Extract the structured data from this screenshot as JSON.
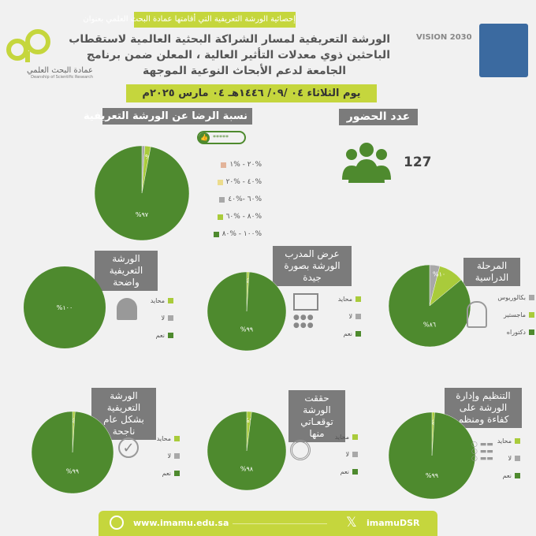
{
  "header": {
    "subtitle": "إحصائية الورشة التعريفية  التي أقامتها عمادة البحث العلمي بعنوان",
    "title_lines": [
      "الورشة التعريفية لمسار الشراكة البحثية العالمية لاستقطاب",
      "الباحثين ذوي معدلات التأثير العالية ، المعلن ضمن برنامج",
      "الجامعة لدعم الأبحاث النوعية الموجهة"
    ],
    "date": "يوم الثلاثاء ٠٤ /٠٩/ ١٤٤٦هـ   ٠٤ مارس ٢٠٢٥م",
    "deanship_logo_ar": "عمادة البحث العلمي",
    "deanship_logo_en": "Deanship of Scientific Research",
    "vision_logo": "VISION 2030"
  },
  "attendance": {
    "title": "عدد الحضور",
    "count": "127",
    "icon": "people-group-icon"
  },
  "colors": {
    "dark": "#4e8a2e",
    "light": "#a9cb3b",
    "gray": "#a8a8a8",
    "peach": "#e3b49a",
    "yellow": "#ecdc8c",
    "accent": "#c5d63d",
    "title_box": "#7b7b7b"
  },
  "chart_data": [
    {
      "type": "pie",
      "title": "نسبة الرضا عن الورشة التعريفية",
      "badge": "*****",
      "legend": [
        "%٢٠ - %١",
        "%٤٠ - %٢٠",
        "%٦٠ -%٤٠",
        "%٨٠ - %٦٠",
        "%١٠٠ - %٨٠"
      ],
      "slices": [
        {
          "label": "%٢٠ - %١",
          "value": 0
        },
        {
          "label": "%٤٠ - %٢٠",
          "value": 0
        },
        {
          "label": "%٦٠ -%٤٠",
          "value": 1,
          "data_label": "%١"
        },
        {
          "label": "%٨٠ - %٦٠",
          "value": 2,
          "data_label": "%٢"
        },
        {
          "label": "%١٠٠ - %٨٠",
          "value": 97,
          "data_label": "%٩٧"
        }
      ]
    },
    {
      "type": "pie",
      "title": "المرحلة  الدراسية",
      "icon": "graduate-icon",
      "slices": [
        {
          "label": "بكالوريوس",
          "value": 4,
          "data_label": "%٤"
        },
        {
          "label": "ماجستير",
          "value": 10,
          "data_label": "%١٠"
        },
        {
          "label": "دكتوراه",
          "value": 86,
          "data_label": "%٨٦"
        }
      ]
    },
    {
      "type": "pie",
      "title": "عرض المدرب الورشة بصورة جيدة",
      "icon": "trainer-presentation-icon",
      "slices": [
        {
          "label": "محايد",
          "value": 1,
          "data_label": "%١"
        },
        {
          "label": "لا",
          "value": 0
        },
        {
          "label": "نعم",
          "value": 99,
          "data_label": "%٩٩"
        }
      ]
    },
    {
      "type": "pie",
      "title": "الورشة التعريفية واضحة",
      "icon": "reading-person-icon",
      "slices": [
        {
          "label": "محايد",
          "value": 0
        },
        {
          "label": "لا",
          "value": 0
        },
        {
          "label": "نعم",
          "value": 100,
          "data_label": "%١٠٠"
        }
      ]
    },
    {
      "type": "pie",
      "title": "التنظيم وإدارة الورشة على كفاءة ومنظم",
      "icon": "checklist-icon",
      "slices": [
        {
          "label": "محايد",
          "value": 1,
          "data_label": "%١"
        },
        {
          "label": "لا",
          "value": 0
        },
        {
          "label": "نعم",
          "value": 99,
          "data_label": "%٩٩"
        }
      ]
    },
    {
      "type": "pie",
      "title": "حققت الورشة توقعـاتي منها",
      "icon": "target-icon",
      "slices": [
        {
          "label": "محايد",
          "value": 2,
          "data_label": "%٢"
        },
        {
          "label": "لا",
          "value": 0
        },
        {
          "label": "نعم",
          "value": 98,
          "data_label": "%٩٨"
        }
      ]
    },
    {
      "type": "pie",
      "title": "الورشة التعريفية بشكل عام ناجحة",
      "icon": "checkmark-circle-icon",
      "slices": [
        {
          "label": "محايد",
          "value": 1,
          "data_label": "%١"
        },
        {
          "label": "لا",
          "value": 0
        },
        {
          "label": "نعم",
          "value": 99,
          "data_label": "%٩٩"
        }
      ]
    }
  ],
  "footer": {
    "website": "www.imamu.edu.sa",
    "x_handle": "imamuDSR"
  }
}
